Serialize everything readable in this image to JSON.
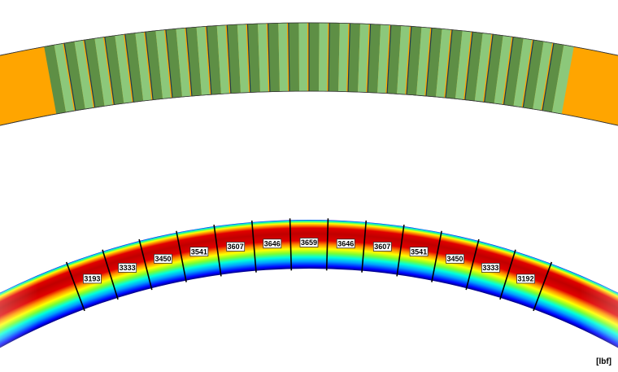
{
  "unit_label": "[lbf]",
  "colors": {
    "tie_strip_fill": "#FFA500",
    "tie_segment_light": "#8CC87A",
    "tie_segment_dark": "#5E8F45",
    "tie_highlight": "#FFA500",
    "contour_low": "#0000C8",
    "contour_high": "#C80000"
  },
  "segment_forces": [
    "3193",
    "3333",
    "3450",
    "3541",
    "3607",
    "3646",
    "3659",
    "3646",
    "3607",
    "3541",
    "3450",
    "3333",
    "3192"
  ]
}
